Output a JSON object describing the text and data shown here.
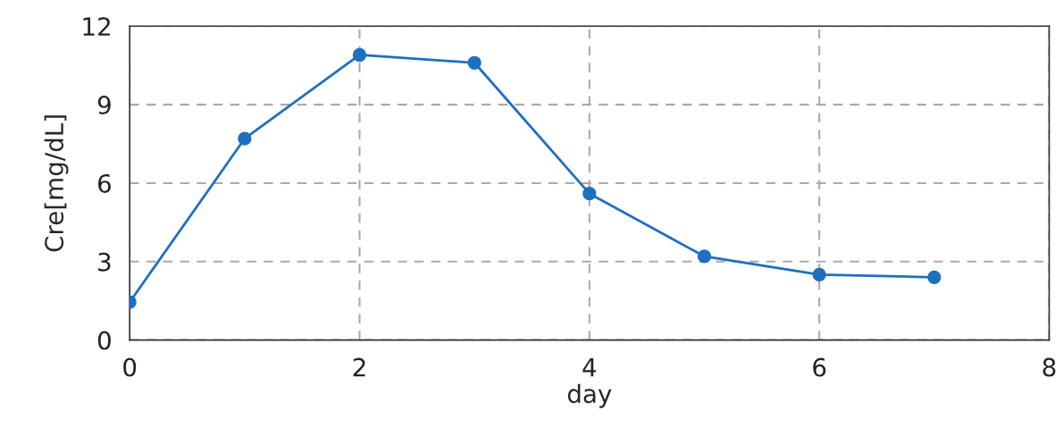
{
  "chart_data": {
    "type": "line",
    "xlabel": "day",
    "ylabel": "Cre[mg/dL]",
    "x": [
      0,
      1,
      2,
      3,
      4,
      5,
      6,
      7
    ],
    "series": [
      {
        "color": "#1f6fc0",
        "values": [
          1.45,
          7.7,
          10.9,
          10.6,
          5.6,
          3.2,
          2.5,
          2.4
        ]
      }
    ],
    "xlim": [
      0,
      8
    ],
    "xticks": [
      0,
      2,
      4,
      6,
      8
    ],
    "ylim": [
      0,
      12
    ],
    "yticks": [
      0,
      3,
      6,
      9,
      12
    ],
    "grid": true,
    "marker": "circle",
    "line_style": "solid"
  }
}
